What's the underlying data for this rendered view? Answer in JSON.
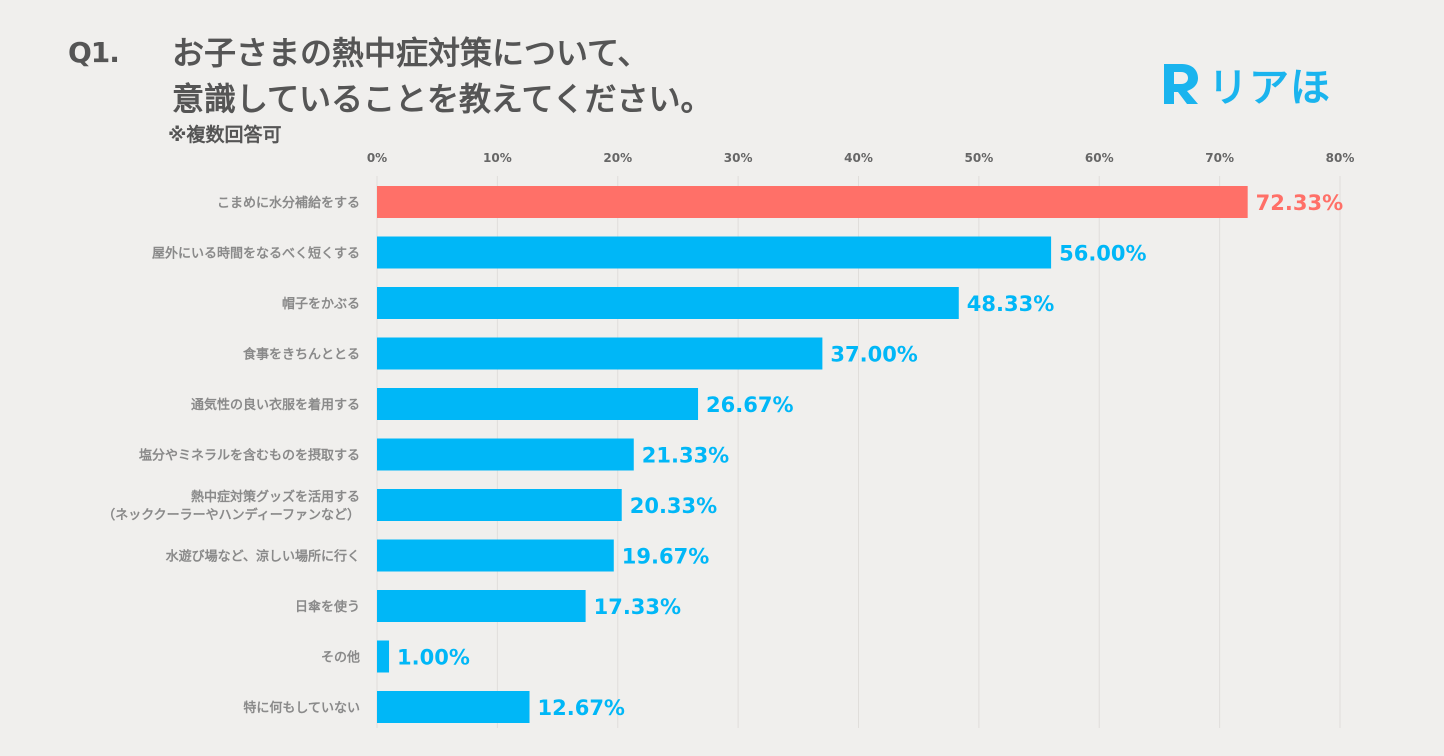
{
  "header": {
    "question_number": "Q1.",
    "title_line1": "お子さまの熱中症対策について、",
    "title_line2": "意識していることを教えてください。",
    "note": "※複数回答可"
  },
  "logo": {
    "text": "リアほ",
    "icon": "r-logo-icon"
  },
  "colors": {
    "highlight": "#ff7068",
    "bar": "#00b7f7",
    "grid": "#e0dedb",
    "text": "#555555",
    "axis_text": "#666666",
    "category_text": "#8a8a8a",
    "background": "#f0efed"
  },
  "chart_data": {
    "type": "bar",
    "orientation": "horizontal",
    "title": "お子さまの熱中症対策について、意識していることを教えてください。",
    "xlim": [
      0,
      80
    ],
    "x_ticks": [
      0,
      10,
      20,
      30,
      40,
      50,
      60,
      70,
      80
    ],
    "x_tick_labels": [
      "0%",
      "10%",
      "20%",
      "30%",
      "40%",
      "50%",
      "60%",
      "70%",
      "80%"
    ],
    "grid": true,
    "categories": [
      [
        "こまめに水分補給をする"
      ],
      [
        "屋外にいる時間をなるべく短くする"
      ],
      [
        "帽子をかぶる"
      ],
      [
        "食事をきちんととる"
      ],
      [
        "通気性の良い衣服を着用する"
      ],
      [
        "塩分やミネラルを含むものを摂取する"
      ],
      [
        "熱中症対策グッズを活用する",
        "（ネッククーラーやハンディーファンなど）"
      ],
      [
        "水遊び場など、涼しい場所に行く"
      ],
      [
        "日傘を使う"
      ],
      [
        "その他"
      ],
      [
        "特に何もしていない"
      ]
    ],
    "values": [
      72.33,
      56.0,
      48.33,
      37.0,
      26.67,
      21.33,
      20.33,
      19.67,
      17.33,
      1.0,
      12.67
    ],
    "value_labels": [
      "72.33%",
      "56.00%",
      "48.33%",
      "37.00%",
      "26.67%",
      "21.33%",
      "20.33%",
      "19.67%",
      "17.33%",
      "1.00%",
      "12.67%"
    ],
    "highlight_index": 0
  }
}
